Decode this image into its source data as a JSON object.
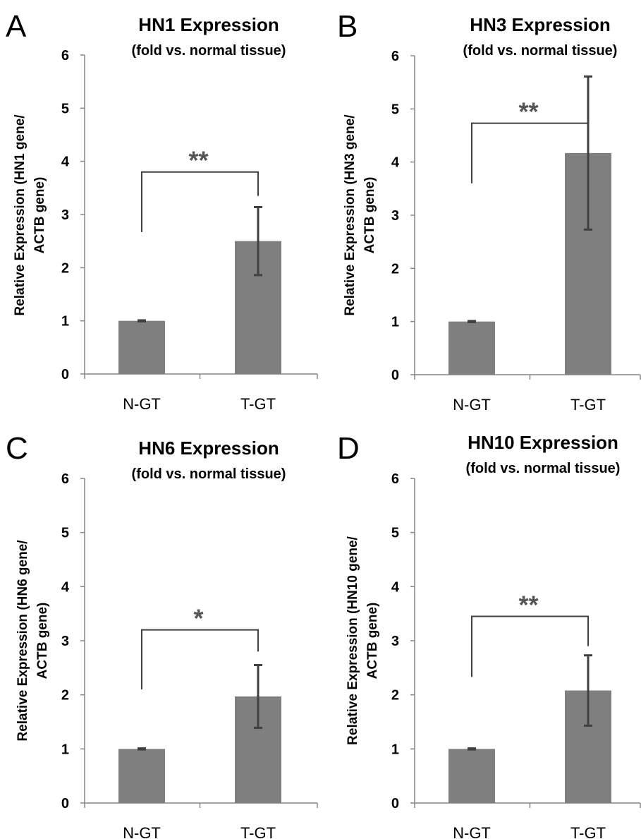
{
  "style": {
    "bar_color": "#7f7f7f",
    "error_color": "#404040",
    "axis_color": "#868686",
    "bracket_color": "#404040",
    "sig_color": "#555555"
  },
  "chart_data": [
    {
      "panel": "A",
      "type": "bar",
      "title": "HN1 Expression",
      "subtitle": "(fold vs. normal tissue)",
      "ylabel_lines": [
        "Relative Expression (HN1 gene/",
        "ACTB gene)"
      ],
      "xlabel": "",
      "categories": [
        "N-GT",
        "T-GT"
      ],
      "values": [
        1.0,
        2.5
      ],
      "errors": [
        0.01,
        0.64
      ],
      "ylim": [
        0,
        6
      ],
      "yticks": [
        "0",
        "1",
        "2",
        "3",
        "4",
        "5",
        "6"
      ],
      "significance": "**",
      "bracket_left": 2.67,
      "bracket_top": 3.8,
      "bracket_right": 3.35,
      "grid": false,
      "legend": "none"
    },
    {
      "panel": "B",
      "type": "bar",
      "title": "HN3 Expression",
      "subtitle": "(fold vs. normal tissue)",
      "ylabel_lines": [
        "Relative Expression (HN3 gene/",
        "ACTB gene)"
      ],
      "xlabel": "",
      "categories": [
        "N-GT",
        "T-GT"
      ],
      "values": [
        1.0,
        4.17
      ],
      "errors": [
        0.01,
        1.44
      ],
      "ylim": [
        0,
        6
      ],
      "yticks": [
        "0",
        "1",
        "2",
        "3",
        "4",
        "5",
        "6"
      ],
      "significance": "**",
      "bracket_left": 3.6,
      "bracket_top": 4.73,
      "bracket_right": 4.3,
      "grid": false,
      "legend": "none"
    },
    {
      "panel": "C",
      "type": "bar",
      "title": "HN6 Expression",
      "subtitle": "(fold vs. normal tissue)",
      "ylabel_lines": [
        "Relative Expression (HN6 gene/",
        "ACTB gene)"
      ],
      "xlabel": "",
      "categories": [
        "N-GT",
        "T-GT"
      ],
      "values": [
        1.0,
        1.97
      ],
      "errors": [
        0.01,
        0.58
      ],
      "ylim": [
        0,
        6
      ],
      "yticks": [
        "0",
        "1",
        "2",
        "3",
        "4",
        "5",
        "6"
      ],
      "significance": "*",
      "bracket_left": 2.1,
      "bracket_top": 3.2,
      "bracket_right": 2.8,
      "grid": false,
      "legend": "none"
    },
    {
      "panel": "D",
      "type": "bar",
      "title": "HN10 Expression",
      "subtitle": "(fold vs. normal tissue)",
      "ylabel_lines": [
        "Relative Expression (HN10 gene/",
        "ACTB gene)"
      ],
      "xlabel": "",
      "categories": [
        "N-GT",
        "T-GT"
      ],
      "values": [
        1.0,
        2.08
      ],
      "errors": [
        0.01,
        0.65
      ],
      "ylim": [
        0,
        6
      ],
      "yticks": [
        "0",
        "1",
        "2",
        "3",
        "4",
        "5",
        "6"
      ],
      "significance": "**",
      "bracket_left": 2.33,
      "bracket_top": 3.45,
      "bracket_right": 2.9,
      "grid": false,
      "legend": "none"
    }
  ]
}
